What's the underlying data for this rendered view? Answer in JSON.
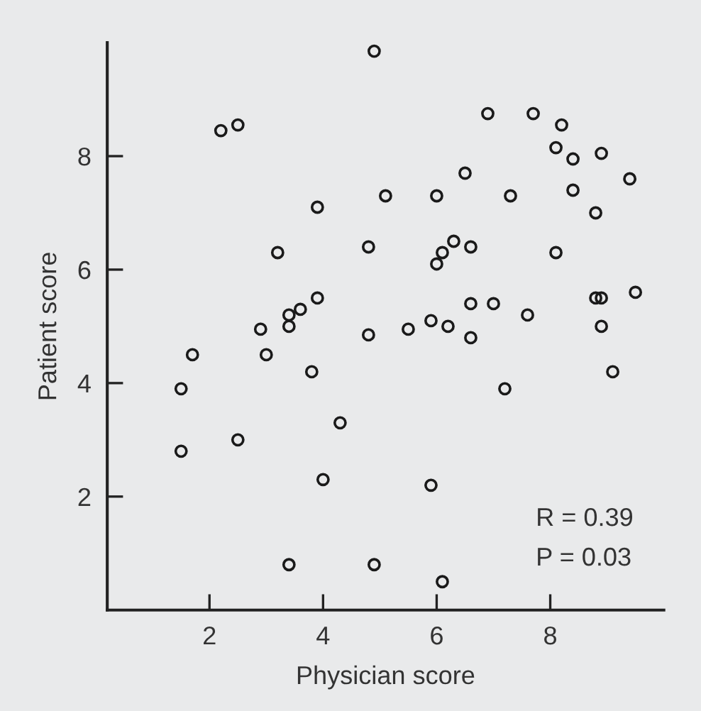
{
  "chart_data": {
    "type": "scatter",
    "xlabel": "Physician score",
    "ylabel": "Patient score",
    "annotations": [
      "R = 0.39",
      "P = 0.03"
    ],
    "xlim": [
      0.2,
      10
    ],
    "ylim": [
      0,
      10
    ],
    "xticks": [
      2,
      4,
      6,
      8
    ],
    "yticks": [
      2,
      4,
      6,
      8
    ],
    "grid": false,
    "legend": false,
    "marker": "circle",
    "series": [
      {
        "color": "#1a1a1a",
        "x": [
          2.2,
          2.5,
          4.9,
          3.9,
          5.1,
          3.2,
          4.8,
          3.9,
          3.6,
          3.4,
          3.4,
          2.9,
          6.9,
          7.7,
          8.2,
          8.1,
          8.4,
          8.9,
          9.4,
          6.5,
          6.0,
          7.3,
          8.4,
          8.8,
          8.1,
          6.3,
          6.1,
          6.0,
          6.6,
          6.6,
          7.0,
          7.6,
          8.8,
          8.9,
          9.5,
          5.9,
          6.2,
          5.5,
          8.9,
          4.8,
          6.6,
          9.1,
          7.2,
          5.9,
          4.9,
          6.1,
          1.7,
          1.5,
          1.5,
          2.5,
          3.0,
          3.8,
          4.3,
          4.0,
          3.4
        ],
        "values": [
          8.45,
          8.55,
          9.85,
          7.1,
          7.3,
          6.3,
          6.4,
          5.5,
          5.3,
          5.2,
          5.0,
          4.95,
          8.75,
          8.75,
          8.55,
          8.15,
          7.95,
          8.05,
          7.6,
          7.7,
          7.3,
          7.3,
          7.4,
          7.0,
          6.3,
          6.5,
          6.3,
          6.1,
          6.4,
          5.4,
          5.4,
          5.2,
          5.5,
          5.5,
          5.6,
          5.1,
          5.0,
          4.95,
          5.0,
          4.85,
          4.8,
          4.2,
          3.9,
          2.2,
          0.8,
          0.5,
          4.5,
          3.9,
          2.8,
          3.0,
          4.5,
          4.2,
          3.3,
          2.3,
          0.8
        ]
      }
    ]
  }
}
